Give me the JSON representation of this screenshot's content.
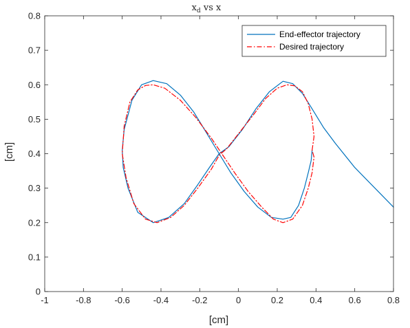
{
  "chart_data": {
    "type": "line",
    "title": "x",
    "title_subscript": "d",
    "title_rest": " vs x",
    "xlabel": "[cm]",
    "ylabel": "[cm]",
    "xlim": [
      -1,
      0.8
    ],
    "ylim": [
      0,
      0.8
    ],
    "xticks": [
      -1,
      -0.8,
      -0.6,
      -0.4,
      -0.2,
      0,
      0.2,
      0.4,
      0.6,
      0.8
    ],
    "xtick_labels": [
      "-1",
      "-0.8",
      "-0.6",
      "-0.4",
      "-0.2",
      "0",
      "0.2",
      "0.4",
      "0.6",
      "0.8"
    ],
    "yticks": [
      0,
      0.1,
      0.2,
      0.3,
      0.4,
      0.5,
      0.6,
      0.7,
      0.8
    ],
    "ytick_labels": [
      "0",
      "0.1",
      "0.2",
      "0.3",
      "0.4",
      "0.5",
      "0.6",
      "0.7",
      "0.8"
    ],
    "grid": false,
    "legend_position": "top-right",
    "series": [
      {
        "name": "End-effector trajectory",
        "color": "#0072bd",
        "style": "solid",
        "x": [
          0.8,
          0.6,
          0.5,
          0.44,
          0.38,
          0.33,
          0.28,
          0.23,
          0.16,
          0.09,
          0.02,
          -0.05,
          -0.1,
          -0.15,
          -0.21,
          -0.28,
          -0.36,
          -0.44,
          -0.52,
          -0.57,
          -0.595,
          -0.6,
          -0.59,
          -0.55,
          -0.5,
          -0.44,
          -0.37,
          -0.3,
          -0.23,
          -0.17,
          -0.1,
          -0.04,
          0.03,
          0.1,
          0.17,
          0.23,
          0.27,
          0.31,
          0.34,
          0.36,
          0.375,
          0.38
        ],
        "y": [
          0.245,
          0.36,
          0.43,
          0.475,
          0.53,
          0.575,
          0.603,
          0.61,
          0.58,
          0.53,
          0.47,
          0.42,
          0.4,
          0.36,
          0.31,
          0.255,
          0.215,
          0.2,
          0.23,
          0.3,
          0.36,
          0.41,
          0.47,
          0.555,
          0.6,
          0.612,
          0.603,
          0.57,
          0.52,
          0.465,
          0.4,
          0.345,
          0.29,
          0.245,
          0.215,
          0.21,
          0.215,
          0.25,
          0.3,
          0.345,
          0.38,
          0.41
        ]
      },
      {
        "name": "Desired trajectory",
        "color": "#ff0000",
        "style": "dashdot",
        "x": [
          0.38,
          0.39,
          0.38,
          0.36,
          0.33,
          0.29,
          0.25,
          0.2,
          0.14,
          0.08,
          0.01,
          -0.06,
          -0.1,
          -0.14,
          -0.21,
          -0.28,
          -0.35,
          -0.42,
          -0.48,
          -0.54,
          -0.58,
          -0.6,
          -0.59,
          -0.56,
          -0.52,
          -0.48,
          -0.44,
          -0.38,
          -0.3,
          -0.22,
          -0.14,
          -0.08,
          -0.02,
          0.05,
          0.12,
          0.18,
          0.23,
          0.28,
          0.33,
          0.36,
          0.38,
          0.39,
          0.38
        ],
        "y": [
          0.41,
          0.45,
          0.5,
          0.545,
          0.58,
          0.597,
          0.6,
          0.59,
          0.56,
          0.515,
          0.465,
          0.415,
          0.395,
          0.355,
          0.3,
          0.25,
          0.215,
          0.2,
          0.21,
          0.255,
          0.33,
          0.4,
          0.48,
          0.55,
          0.585,
          0.598,
          0.6,
          0.59,
          0.555,
          0.505,
          0.445,
          0.395,
          0.345,
          0.29,
          0.245,
          0.21,
          0.2,
          0.21,
          0.25,
          0.3,
          0.345,
          0.39,
          0.41
        ]
      }
    ]
  }
}
